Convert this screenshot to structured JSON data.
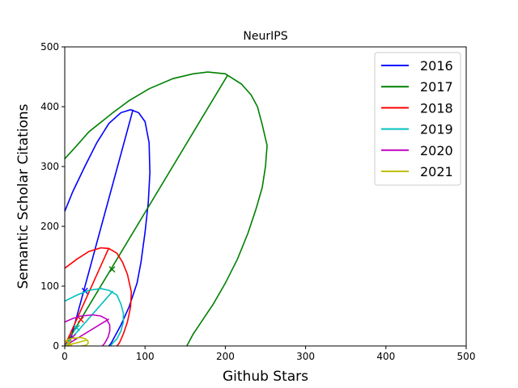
{
  "chart_data": {
    "type": "scatter",
    "title": "NeurIPS",
    "xlabel": "Github Stars",
    "ylabel": "Semantic Scholar Citations",
    "xlim": [
      0,
      500
    ],
    "ylim": [
      0,
      500
    ],
    "xticks": [
      "0",
      "100",
      "200",
      "300",
      "400",
      "500"
    ],
    "yticks": [
      "0",
      "100",
      "200",
      "300",
      "400",
      "500"
    ],
    "grid": false,
    "legend": "top-right",
    "series": [
      {
        "name": "2016",
        "color": "#0000ff",
        "center": [
          25,
          92
        ],
        "ellipse": [
          [
            0,
            225
          ],
          [
            10,
            258
          ],
          [
            25,
            300
          ],
          [
            40,
            340
          ],
          [
            55,
            372
          ],
          [
            70,
            390
          ],
          [
            82,
            395
          ],
          [
            92,
            390
          ],
          [
            100,
            375
          ],
          [
            105,
            340
          ],
          [
            106,
            290
          ],
          [
            104,
            240
          ],
          [
            100,
            190
          ],
          [
            95,
            140
          ],
          [
            90,
            105
          ],
          [
            80,
            65
          ],
          [
            70,
            35
          ],
          [
            62,
            15
          ],
          [
            58,
            5
          ],
          [
            55,
            0
          ]
        ],
        "axis_line": [
          [
            5,
            0
          ],
          [
            85,
            395
          ]
        ]
      },
      {
        "name": "2017",
        "color": "#008000",
        "center": [
          59,
          128
        ],
        "ellipse": [
          [
            0,
            313
          ],
          [
            15,
            335
          ],
          [
            30,
            358
          ],
          [
            60,
            390
          ],
          [
            80,
            410
          ],
          [
            105,
            430
          ],
          [
            135,
            447
          ],
          [
            160,
            455
          ],
          [
            178,
            458
          ],
          [
            200,
            455
          ],
          [
            220,
            438
          ],
          [
            232,
            420
          ],
          [
            240,
            400
          ],
          [
            246,
            370
          ],
          [
            252,
            335
          ],
          [
            250,
            300
          ],
          [
            246,
            265
          ],
          [
            238,
            228
          ],
          [
            228,
            188
          ],
          [
            215,
            145
          ],
          [
            200,
            105
          ],
          [
            185,
            70
          ],
          [
            170,
            40
          ],
          [
            160,
            20
          ],
          [
            152,
            0
          ]
        ],
        "axis_line": [
          [
            0,
            0
          ],
          [
            203,
            453
          ]
        ]
      },
      {
        "name": "2018",
        "color": "#ff0000",
        "center": [
          20,
          44
        ],
        "ellipse": [
          [
            0,
            130
          ],
          [
            15,
            145
          ],
          [
            30,
            158
          ],
          [
            45,
            164
          ],
          [
            55,
            163
          ],
          [
            65,
            155
          ],
          [
            72,
            140
          ],
          [
            78,
            120
          ],
          [
            83,
            90
          ],
          [
            82,
            65
          ],
          [
            78,
            40
          ],
          [
            73,
            20
          ],
          [
            68,
            5
          ],
          [
            65,
            0
          ]
        ],
        "axis_line": [
          [
            0,
            0
          ],
          [
            55,
            164
          ]
        ]
      },
      {
        "name": "2019",
        "color": "#00bfbf",
        "center": [
          15,
          30
        ],
        "ellipse": [
          [
            0,
            75
          ],
          [
            15,
            85
          ],
          [
            30,
            93
          ],
          [
            45,
            96
          ],
          [
            55,
            93
          ],
          [
            65,
            85
          ],
          [
            70,
            70
          ],
          [
            73,
            55
          ],
          [
            73,
            40
          ],
          [
            70,
            25
          ],
          [
            65,
            12
          ],
          [
            60,
            5
          ],
          [
            57,
            0
          ]
        ],
        "axis_line": [
          [
            0,
            0
          ],
          [
            60,
            92
          ]
        ]
      },
      {
        "name": "2020",
        "color": "#bf00bf",
        "center": [
          10,
          15
        ],
        "ellipse": [
          [
            0,
            40
          ],
          [
            10,
            46
          ],
          [
            20,
            50
          ],
          [
            35,
            52
          ],
          [
            45,
            50
          ],
          [
            52,
            45
          ],
          [
            56,
            35
          ],
          [
            56,
            25
          ],
          [
            54,
            15
          ],
          [
            50,
            5
          ],
          [
            47,
            0
          ]
        ],
        "axis_line": [
          [
            0,
            0
          ],
          [
            55,
            45
          ]
        ]
      },
      {
        "name": "2021",
        "color": "#bfbf00",
        "center": [
          5,
          5
        ],
        "ellipse": [
          [
            0,
            8
          ],
          [
            5,
            11
          ],
          [
            10,
            13
          ],
          [
            20,
            14
          ],
          [
            26,
            12
          ],
          [
            29,
            8
          ],
          [
            29,
            4
          ],
          [
            26,
            1
          ],
          [
            20,
            0
          ]
        ],
        "axis_line": [
          [
            0,
            0
          ],
          [
            28,
            10
          ]
        ]
      }
    ]
  }
}
